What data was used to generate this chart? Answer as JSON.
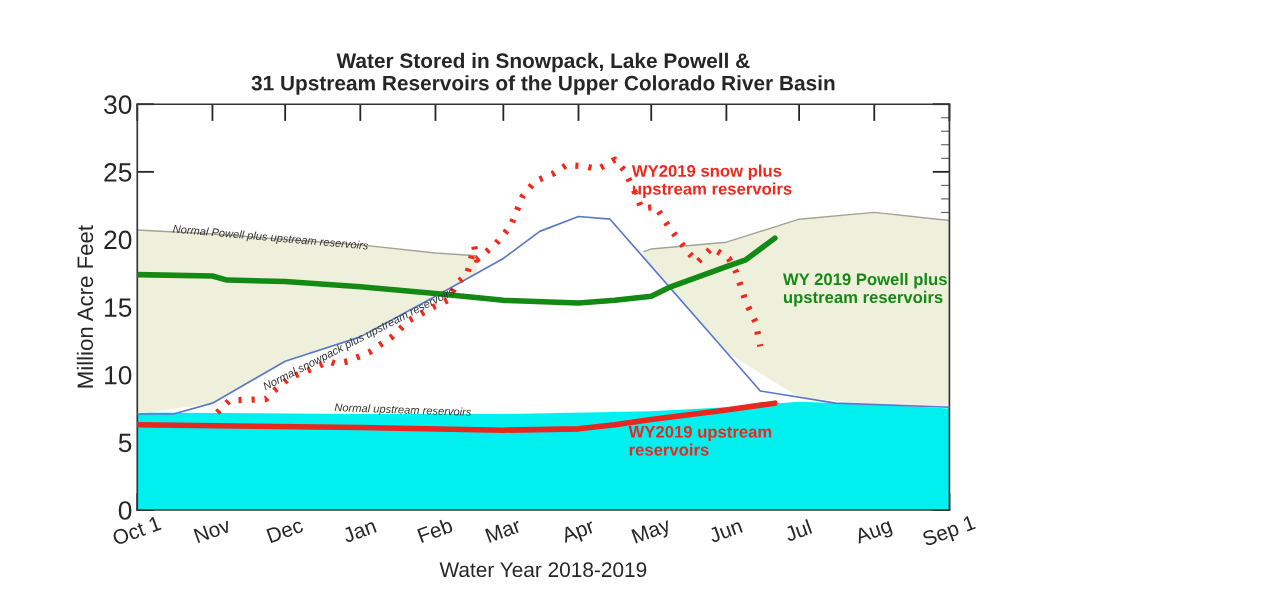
{
  "chart_data": {
    "type": "line",
    "title": "Water Stored in Snowpack, Lake Powell &\n31 Upstream Reservoirs of the Upper Colorado River Basin",
    "xlabel": "Water Year 2018-2019",
    "ylabel": "Million Acre Feet",
    "xlim": [
      "2018-10-01",
      "2019-09-01"
    ],
    "xticks": [
      {
        "value": "2018-10-01",
        "label": "Oct 1"
      },
      {
        "value": "2018-11-01",
        "label": "Nov"
      },
      {
        "value": "2018-12-01",
        "label": "Dec"
      },
      {
        "value": "2019-01-01",
        "label": "Jan"
      },
      {
        "value": "2019-02-01",
        "label": "Feb"
      },
      {
        "value": "2019-03-01",
        "label": "Mar"
      },
      {
        "value": "2019-04-01",
        "label": "Apr"
      },
      {
        "value": "2019-05-01",
        "label": "May"
      },
      {
        "value": "2019-06-01",
        "label": "Jun"
      },
      {
        "value": "2019-07-01",
        "label": "Jul"
      },
      {
        "value": "2019-08-01",
        "label": "Aug"
      },
      {
        "value": "2019-09-01",
        "label": "Sep 1"
      }
    ],
    "ylim": [
      0,
      30
    ],
    "yticks": [
      0,
      5,
      10,
      15,
      20,
      25,
      30
    ],
    "grid": false,
    "legend": false,
    "series": [
      {
        "name": "Normal upstream reservoirs",
        "type": "area",
        "color": "#00f0f0",
        "x": [
          "2018-10-01",
          "2019-01-01",
          "2019-03-01",
          "2019-05-01",
          "2019-06-01",
          "2019-07-01",
          "2019-08-01",
          "2019-09-01"
        ],
        "values": [
          7.2,
          7.1,
          7.1,
          7.3,
          7.6,
          8.0,
          7.8,
          7.5
        ]
      },
      {
        "name": "Normal snowpack plus upstream reservoirs",
        "color": "#5a78c8",
        "x": [
          "2018-10-01",
          "2018-10-16",
          "2018-11-01",
          "2018-12-01",
          "2019-01-01",
          "2019-02-01",
          "2019-03-01",
          "2019-03-16",
          "2019-04-01",
          "2019-04-14",
          "2019-06-15",
          "2019-07-16",
          "2019-09-01"
        ],
        "values": [
          7.1,
          7.1,
          7.9,
          11.0,
          12.8,
          15.8,
          18.6,
          20.6,
          21.7,
          21.5,
          8.8,
          7.9,
          7.6
        ]
      },
      {
        "name": "Normal Powell plus upstream reservoirs",
        "type": "area",
        "color": "#eef0dc",
        "x": [
          "2018-10-01",
          "2018-11-01",
          "2018-12-01",
          "2019-01-01",
          "2019-02-01",
          "2019-02-18",
          "2019-03-01",
          "2019-04-01",
          "2019-04-28",
          "2019-05-01",
          "2019-06-01",
          "2019-07-01",
          "2019-08-01",
          "2019-09-01"
        ],
        "values": [
          20.7,
          20.4,
          20.0,
          19.6,
          19.0,
          18.8,
          null,
          null,
          19.1,
          19.3,
          19.8,
          21.5,
          22.0,
          21.4
        ]
      },
      {
        "name": "WY 2019 Powell plus\nupstream reservoirs",
        "color": "#138a13",
        "x": [
          "2018-10-01",
          "2018-11-01",
          "2018-11-07",
          "2018-12-01",
          "2019-01-01",
          "2019-02-01",
          "2019-03-01",
          "2019-04-01",
          "2019-04-16",
          "2019-05-01",
          "2019-05-09",
          "2019-06-01",
          "2019-06-09",
          "2019-06-21"
        ],
        "values": [
          17.4,
          17.3,
          17.0,
          16.9,
          16.5,
          16.0,
          15.5,
          15.3,
          15.5,
          15.8,
          16.5,
          18.0,
          18.5,
          20.1
        ]
      },
      {
        "name": "WY2019 upstream\nreservoirs",
        "color": "#e8281e",
        "x": [
          "2018-10-01",
          "2019-01-01",
          "2019-03-01",
          "2019-04-01",
          "2019-04-16",
          "2019-05-01",
          "2019-06-01",
          "2019-06-21"
        ],
        "values": [
          6.3,
          6.1,
          5.9,
          6.0,
          6.3,
          6.7,
          7.4,
          7.9
        ]
      },
      {
        "name": "WY2019 snow plus\nupstream reservoirs",
        "line_style": "dotted",
        "color": "#f0281e",
        "x": [
          "2018-11-03",
          "2018-11-08",
          "2018-11-23",
          "2018-11-27",
          "2018-12-03",
          "2018-12-13",
          "2018-12-19",
          "2018-12-22",
          "2018-12-27",
          "2019-01-05",
          "2019-01-14",
          "2019-01-21",
          "2019-01-31",
          "2019-02-06",
          "2019-02-10",
          "2019-02-14",
          "2019-02-17",
          "2019-02-18",
          "2019-02-26",
          "2019-03-04",
          "2019-03-09",
          "2019-03-14",
          "2019-03-22",
          "2019-03-27",
          "2019-04-04",
          "2019-04-09",
          "2019-04-16",
          "2019-04-20",
          "2019-04-25",
          "2019-04-27",
          "2019-05-03",
          "2019-05-08",
          "2019-05-16",
          "2019-05-20",
          "2019-05-26",
          "2019-06-02",
          "2019-06-05",
          "2019-06-09",
          "2019-06-13",
          "2019-06-15"
        ],
        "values": [
          7.2,
          8.1,
          8.2,
          8.9,
          9.8,
          10.5,
          11.0,
          10.8,
          11.0,
          11.7,
          12.8,
          14.0,
          15.0,
          15.5,
          16.8,
          17.4,
          19.5,
          18.5,
          19.7,
          21.0,
          23.2,
          24.3,
          24.9,
          25.5,
          25.4,
          25.2,
          25.9,
          25.1,
          23.2,
          22.3,
          22.4,
          21.0,
          19.1,
          18.3,
          19.4,
          18.6,
          17.6,
          15.4,
          13.9,
          12.1
        ]
      }
    ]
  }
}
